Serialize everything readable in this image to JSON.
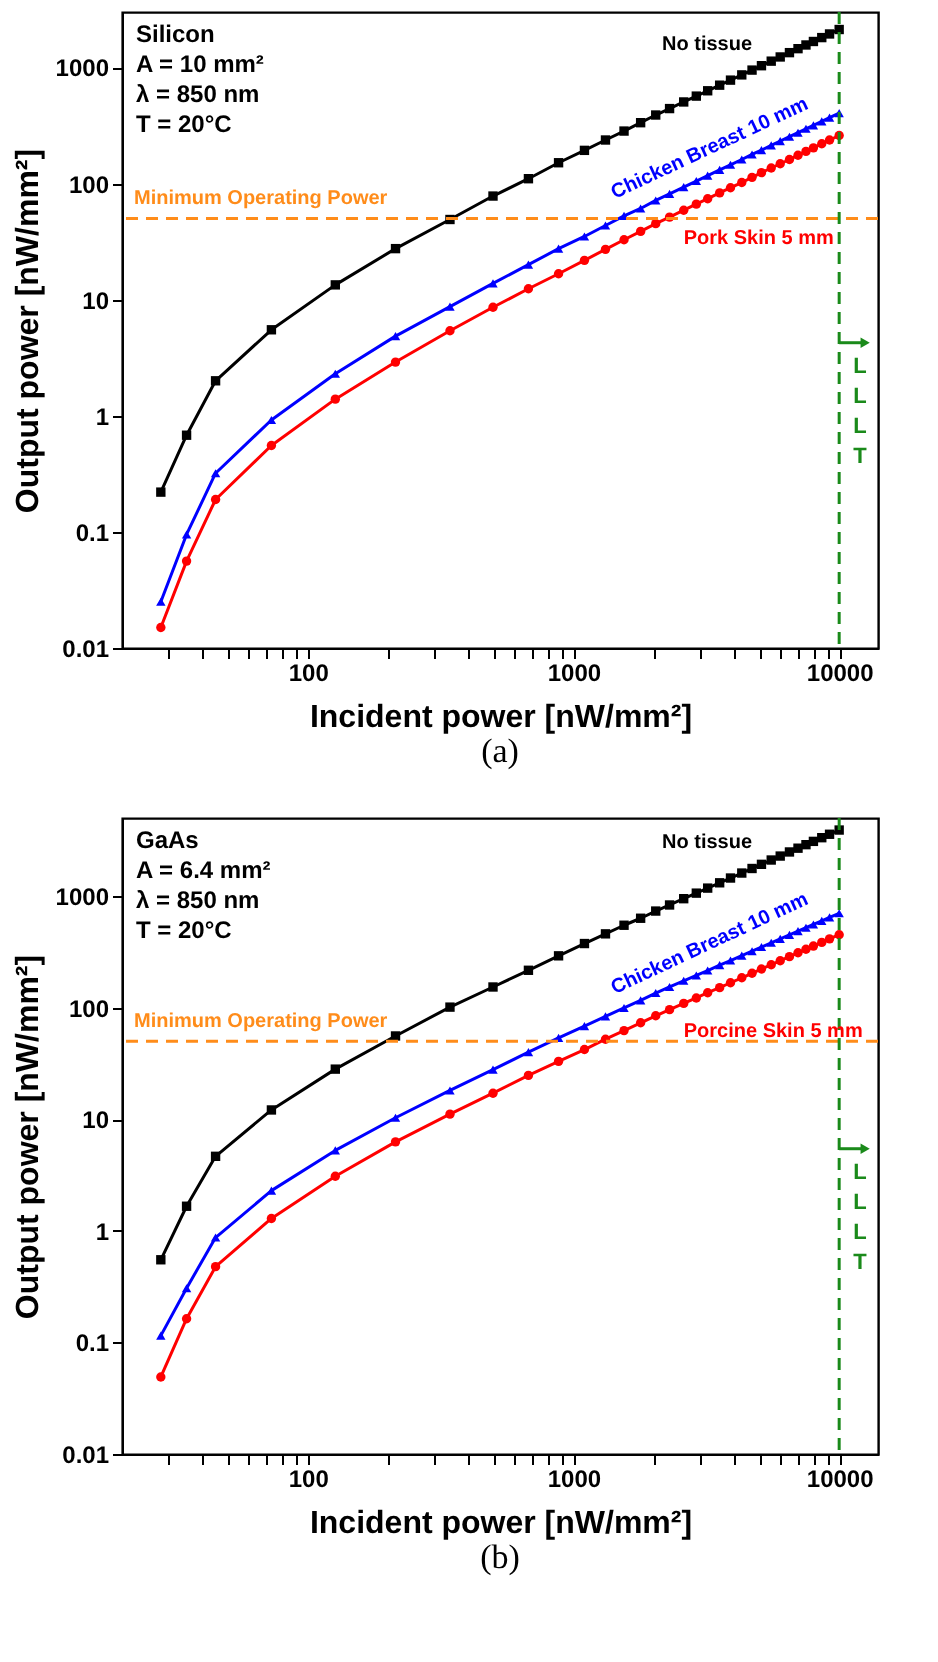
{
  "chart_data": [
    {
      "type": "line",
      "xlabel": "Incident power [nW/mm²]",
      "ylabel": "Output power [nW/mm²]",
      "log": "xy",
      "grid": false,
      "annotations": [
        "Silicon",
        "A = 10 mm²",
        "λ = 850 nm",
        "T = 20°C",
        "(a)"
      ],
      "x": [
        28,
        35,
        45,
        73,
        127,
        214,
        343,
        498,
        677,
        879,
        1100,
        1320,
        1550,
        1790,
        2040,
        2300,
        2600,
        2900,
        3200,
        3550,
        3900,
        4300,
        4700,
        5100,
        5550,
        6000,
        6500,
        7000,
        7500,
        8000,
        8600,
        9200,
        10000
      ],
      "xlim": [
        20,
        14000
      ],
      "ylim": [
        0.01,
        3000
      ],
      "xticks": [
        {
          "value": 30,
          "label": null
        },
        {
          "value": 40,
          "label": null
        },
        {
          "value": 50,
          "label": null
        },
        {
          "value": 60,
          "label": null
        },
        {
          "value": 70,
          "label": null
        },
        {
          "value": 80,
          "label": null
        },
        {
          "value": 90,
          "label": null
        },
        100,
        {
          "value": 200,
          "label": null
        },
        {
          "value": 300,
          "label": null
        },
        {
          "value": 400,
          "label": null
        },
        {
          "value": 500,
          "label": null
        },
        {
          "value": 600,
          "label": null
        },
        {
          "value": 700,
          "label": null
        },
        {
          "value": 800,
          "label": null
        },
        {
          "value": 900,
          "label": null
        },
        1000,
        {
          "value": 2000,
          "label": null
        },
        {
          "value": 3000,
          "label": null
        },
        {
          "value": 4000,
          "label": null
        },
        {
          "value": 5000,
          "label": null
        },
        {
          "value": 6000,
          "label": null
        },
        {
          "value": 7000,
          "label": null
        },
        {
          "value": 8000,
          "label": null
        },
        {
          "value": 9000,
          "label": null
        },
        10000
      ],
      "yticks": [
        0.01,
        0.1,
        1,
        10,
        100,
        1000
      ],
      "series": [
        {
          "name": "No tissue",
          "color": "#000000",
          "marker": "square",
          "values": [
            0.22,
            0.68,
            2,
            5.5,
            13.4,
            27.5,
            49,
            78,
            110,
            151,
            193,
            237,
            283,
            334,
            389,
            442,
            504,
            566,
            629,
            703,
            777,
            862,
            948,
            1034,
            1132,
            1230,
            1340,
            1450,
            1560,
            1672,
            1806,
            1941,
            2120
          ]
        },
        {
          "name": "Chicken Breast 10 mm",
          "color": "#0000ff",
          "marker": "triangle",
          "values": [
            0.025,
            0.095,
            0.32,
            0.92,
            2.3,
            4.85,
            8.7,
            13.8,
            20,
            27.5,
            35,
            43.5,
            52.6,
            61,
            71.5,
            81.4,
            93.1,
            105,
            117,
            131,
            145,
            161,
            178,
            194,
            213,
            232,
            253,
            274,
            296,
            317,
            343,
            369,
            404
          ]
        },
        {
          "name": "Pork Skin 5 mm",
          "color": "#ff0000",
          "marker": "circle",
          "values": [
            0.015,
            0.056,
            0.19,
            0.555,
            1.39,
            2.9,
            5.4,
            8.6,
            12.4,
            16.7,
            21.8,
            27.1,
            32.8,
            38.7,
            45.1,
            51.4,
            58.9,
            66.4,
            74,
            83,
            92,
            102,
            113,
            124,
            136,
            148,
            161,
            175,
            189,
            203,
            220,
            237,
            259
          ]
        }
      ],
      "ref_lines": [
        {
          "axis": "y",
          "value": 50,
          "label": "Minimum Operating Power",
          "color": "#ff8c1a",
          "line_style": "dashed"
        },
        {
          "axis": "x",
          "value": 10000,
          "label": "LLLT",
          "color": "#1a8a1a",
          "line_style": "dashed"
        }
      ]
    },
    {
      "type": "line",
      "xlabel": "Incident power [nW/mm²]",
      "ylabel": "Output power [nW/mm²]",
      "log": "xy",
      "grid": false,
      "annotations": [
        "GaAs",
        "A = 6.4 mm²",
        "λ = 850 nm",
        "T = 20°C",
        "(b)"
      ],
      "x": [
        28,
        35,
        45,
        73,
        127,
        214,
        343,
        498,
        677,
        879,
        1100,
        1320,
        1550,
        1790,
        2040,
        2300,
        2600,
        2900,
        3200,
        3550,
        3900,
        4300,
        4700,
        5100,
        5550,
        6000,
        6500,
        7000,
        7500,
        8000,
        8600,
        9200,
        10000
      ],
      "xlim": [
        20,
        14000
      ],
      "ylim": [
        0.01,
        5000
      ],
      "xticks": [
        {
          "value": 30,
          "label": null
        },
        {
          "value": 40,
          "label": null
        },
        {
          "value": 50,
          "label": null
        },
        {
          "value": 60,
          "label": null
        },
        {
          "value": 70,
          "label": null
        },
        {
          "value": 80,
          "label": null
        },
        {
          "value": 90,
          "label": null
        },
        100,
        {
          "value": 200,
          "label": null
        },
        {
          "value": 300,
          "label": null
        },
        {
          "value": 400,
          "label": null
        },
        {
          "value": 500,
          "label": null
        },
        {
          "value": 600,
          "label": null
        },
        {
          "value": 700,
          "label": null
        },
        {
          "value": 800,
          "label": null
        },
        {
          "value": 900,
          "label": null
        },
        1000,
        {
          "value": 2000,
          "label": null
        },
        {
          "value": 3000,
          "label": null
        },
        {
          "value": 4000,
          "label": null
        },
        {
          "value": 5000,
          "label": null
        },
        {
          "value": 6000,
          "label": null
        },
        {
          "value": 7000,
          "label": null
        },
        {
          "value": 8000,
          "label": null
        },
        {
          "value": 9000,
          "label": null
        },
        10000
      ],
      "yticks": [
        0.01,
        0.1,
        1,
        10,
        100,
        1000
      ],
      "series": [
        {
          "name": "No tissue",
          "color": "#000000",
          "marker": "square",
          "values": [
            0.55,
            1.66,
            4.65,
            12.1,
            28.1,
            55.7,
            101,
            153,
            216,
            291,
            375,
            458,
            547,
            632,
            733,
            831,
            946,
            1061,
            1177,
            1313,
            1449,
            1606,
            1764,
            1922,
            2101,
            2280,
            2481,
            2682,
            2884,
            3087,
            3330,
            3575,
            3900
          ]
        },
        {
          "name": "Chicken Breast 10 mm",
          "color": "#0000ff",
          "marker": "triangle",
          "values": [
            0.115,
            0.306,
            0.87,
            2.29,
            5.25,
            10.3,
            18.1,
            27.8,
            39.9,
            53.6,
            68.2,
            83.4,
            99.3,
            116,
            135,
            153,
            174,
            194,
            215,
            240,
            264,
            292,
            320,
            349,
            381,
            413,
            448,
            484,
            520,
            556,
            599,
            643,
            700
          ]
        },
        {
          "name": "Porcine Skin 5 mm",
          "color": "#ff0000",
          "marker": "circle",
          "values": [
            0.049,
            0.163,
            0.477,
            1.29,
            3.08,
            6.27,
            11.1,
            17.1,
            24.7,
            33,
            42.1,
            52.1,
            62.2,
            73.1,
            84.5,
            95.8,
            109,
            122,
            136,
            151,
            167,
            185,
            203,
            222,
            242,
            263,
            286,
            310,
            333,
            356,
            384,
            413,
            450
          ]
        }
      ],
      "ref_lines": [
        {
          "axis": "y",
          "value": 50,
          "label": "Minimum Operating Power",
          "color": "#ff8c1a",
          "line_style": "dashed"
        },
        {
          "axis": "x",
          "value": 10000,
          "label": "LLLT",
          "color": "#1a8a1a",
          "line_style": "dashed"
        }
      ]
    }
  ]
}
